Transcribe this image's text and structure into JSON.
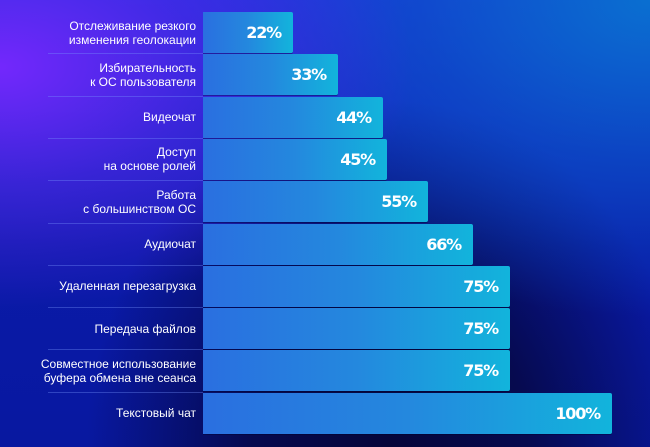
{
  "chart_data": {
    "type": "bar",
    "orientation": "horizontal",
    "title": "",
    "xlabel": "",
    "ylabel": "",
    "xlim": [
      0,
      100
    ],
    "grid": false,
    "legend": null,
    "categories": [
      "Отслеживание резкого\nизменения геолокации",
      "Избирательность\nк ОС пользователя",
      "Видеочат",
      "Доступ\nна основе ролей",
      "Работа\nс большинством ОС",
      "Аудиочат",
      "Удаленная перезагрузка",
      "Передача файлов",
      "Совместное использование\nбуфера обмена вне сеанса",
      "Текстовый чат"
    ],
    "values": [
      22,
      33,
      44,
      45,
      55,
      66,
      75,
      75,
      75,
      100
    ],
    "value_labels": [
      "22%",
      "33%",
      "44%",
      "45%",
      "55%",
      "66%",
      "75%",
      "75%",
      "75%",
      "100%"
    ],
    "unit": "%"
  },
  "colors": {
    "bar_start": "#2a6fe0",
    "bar_end": "#12b4dc",
    "text": "#ffffff",
    "background_top_left": "#7828ff",
    "background_main": "#0a1aa8"
  }
}
